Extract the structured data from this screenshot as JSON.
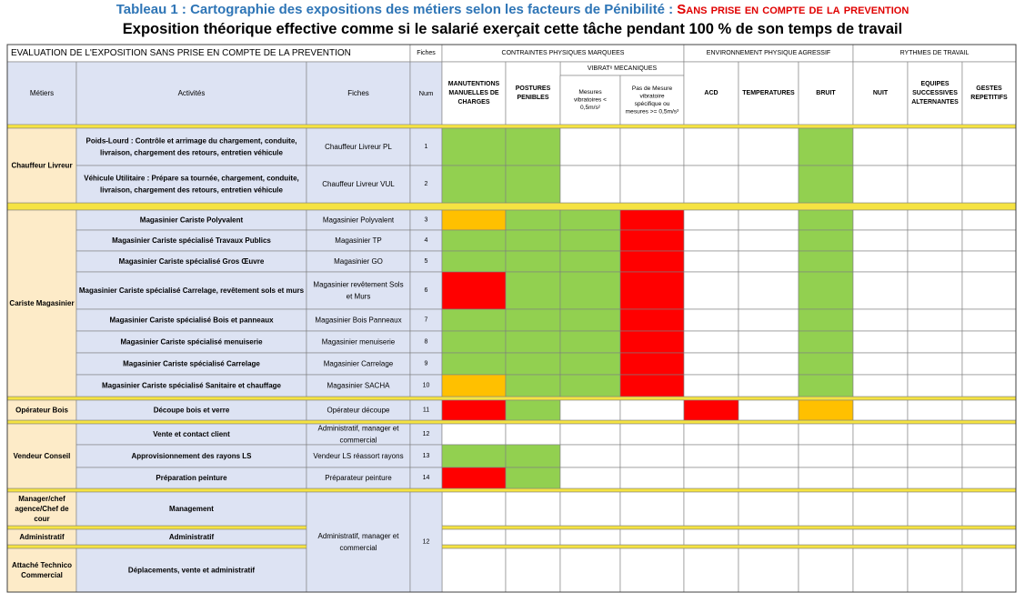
{
  "title": {
    "prefix": "Tableau 1 : Cartographie des expositions des métiers selon les facteurs de Pénibilité : ",
    "suffix": "Sans prise en compte de la prevention"
  },
  "subtitle": "Exposition théorique effective comme si le salarié exerçait cette tâche pendant 100 % de son temps de travail",
  "header": {
    "evaluation": "EVALUATION DE L'EXPOSITION SANS PRISE EN COMPTE DE LA PREVENTION",
    "fiches_top": "Fiches",
    "metiers": "Métiers",
    "activites": "Activités",
    "fiches": "Fiches",
    "num": "Num",
    "groups": [
      "CONTRAINTES PHYSIQUES MARQUEES",
      "ENVIRONNEMENT PHYSIQUE AGRESSIF",
      "RYTHMES DE TRAVAIL"
    ],
    "vibrations": "VIBRATᵉ MECANIQUES",
    "columns": [
      [
        "MANUTENTIONS",
        "MANUELLES DE",
        "CHARGES"
      ],
      [
        "POSTURES",
        "PENIBLES"
      ],
      [
        "Mesures",
        "vibratoires <",
        "0,5m/s²"
      ],
      [
        "Pas de Mesure",
        "vibratoire",
        "spécifique ou",
        "mesures >= 0,5m/s²"
      ],
      [
        "ACD"
      ],
      [
        "TEMPERATURES"
      ],
      [
        "BRUIT"
      ],
      [
        "NUIT"
      ],
      [
        "EQUIPES",
        "SUCCESSIVES",
        "ALTERNANTES"
      ],
      [
        "GESTES",
        "REPETITIFS"
      ]
    ]
  },
  "colors": {
    "green": "#92d050",
    "red": "#ff0000",
    "orange": "#ffc000",
    "row_fill": "#dde3f3",
    "metier_fill": "#fdebc8",
    "separator": "#f5e342"
  },
  "metiers": [
    {
      "label": [
        "Chauffeur Livreur"
      ]
    },
    {
      "label": [
        "Cariste Magasinier"
      ]
    },
    {
      "label": [
        "Opérateur Bois"
      ]
    },
    {
      "label": [
        "Vendeur Conseil"
      ]
    },
    {
      "label": [
        "Manager/chef",
        "agence/Chef de",
        "cour"
      ]
    },
    {
      "label": [
        "Administratif"
      ]
    },
    {
      "label": [
        "Attaché Technico",
        "Commercial"
      ]
    }
  ],
  "rows": [
    {
      "activite": [
        "Poids-Lourd : Contrôle et arrimage du chargement, conduite,",
        "livraison, chargement des retours, entretien véhicule"
      ],
      "fiche": [
        "Chauffeur Livreur PL"
      ],
      "num": "1",
      "cells": [
        "G",
        "G",
        "",
        "",
        "",
        "",
        "G",
        "",
        "",
        ""
      ]
    },
    {
      "activite": [
        "Véhicule Utilitaire : Prépare sa tournée, chargement, conduite,",
        "livraison, chargement des retours, entretien véhicule"
      ],
      "fiche": [
        "Chauffeur Livreur VUL"
      ],
      "num": "2",
      "cells": [
        "G",
        "G",
        "",
        "",
        "",
        "",
        "G",
        "",
        "",
        ""
      ]
    },
    {
      "activite": [
        "Magasinier Cariste Polyvalent"
      ],
      "fiche": [
        "Magasinier Polyvalent"
      ],
      "num": "3",
      "cells": [
        "O",
        "G",
        "G",
        "R",
        "",
        "",
        "G",
        "",
        "",
        ""
      ]
    },
    {
      "activite": [
        "Magasinier Cariste spécialisé Travaux Publics"
      ],
      "fiche": [
        "Magasinier TP"
      ],
      "num": "4",
      "cells": [
        "G",
        "G",
        "G",
        "R",
        "",
        "",
        "G",
        "",
        "",
        ""
      ]
    },
    {
      "activite": [
        "Magasinier Cariste spécialisé Gros Œuvre"
      ],
      "fiche": [
        "Magasinier GO"
      ],
      "num": "5",
      "cells": [
        "G",
        "G",
        "G",
        "R",
        "",
        "",
        "G",
        "",
        "",
        ""
      ]
    },
    {
      "activite": [
        "Magasinier Cariste spécialisé Carrelage, revêtement sols et murs"
      ],
      "fiche": [
        "Magasinier revêtement Sols",
        "et Murs"
      ],
      "num": "6",
      "cells": [
        "R",
        "G",
        "G",
        "R",
        "",
        "",
        "G",
        "",
        "",
        ""
      ]
    },
    {
      "activite": [
        "Magasinier Cariste spécialisé Bois et panneaux"
      ],
      "fiche": [
        "Magasinier Bois Panneaux"
      ],
      "num": "7",
      "cells": [
        "G",
        "G",
        "G",
        "R",
        "",
        "",
        "G",
        "",
        "",
        ""
      ]
    },
    {
      "activite": [
        "Magasinier Cariste spécialisé menuiserie"
      ],
      "fiche": [
        "Magasinier menuiserie"
      ],
      "num": "8",
      "cells": [
        "G",
        "G",
        "G",
        "R",
        "",
        "",
        "G",
        "",
        "",
        ""
      ]
    },
    {
      "activite": [
        "Magasinier Cariste spécialisé Carrelage"
      ],
      "fiche": [
        "Magasinier Carrelage"
      ],
      "num": "9",
      "cells": [
        "G",
        "G",
        "G",
        "R",
        "",
        "",
        "G",
        "",
        "",
        ""
      ]
    },
    {
      "activite": [
        "Magasinier Cariste spécialisé Sanitaire et chauffage"
      ],
      "fiche": [
        "Magasinier SACHA"
      ],
      "num": "10",
      "cells": [
        "O",
        "G",
        "G",
        "R",
        "",
        "",
        "G",
        "",
        "",
        ""
      ]
    },
    {
      "activite": [
        "Découpe bois et verre"
      ],
      "fiche": [
        "Opérateur découpe"
      ],
      "num": "11",
      "cells": [
        "R",
        "G",
        "",
        "",
        "R",
        "",
        "O",
        "",
        "",
        ""
      ]
    },
    {
      "activite": [
        "Vente et contact client"
      ],
      "fiche": [
        "Administratif, manager et",
        "commercial"
      ],
      "num": "12",
      "cells": [
        "",
        "",
        "",
        "",
        "",
        "",
        "",
        "",
        "",
        ""
      ]
    },
    {
      "activite": [
        "Approvisionnement des rayons LS"
      ],
      "fiche": [
        "Vendeur LS réassort rayons"
      ],
      "num": "13",
      "cells": [
        "G",
        "G",
        "",
        "",
        "",
        "",
        "",
        "",
        "",
        ""
      ]
    },
    {
      "activite": [
        "Préparation peinture"
      ],
      "fiche": [
        "Préparateur peinture"
      ],
      "num": "14",
      "cells": [
        "R",
        "G",
        "",
        "",
        "",
        "",
        "",
        "",
        "",
        ""
      ]
    },
    {
      "activite": [
        "Management"
      ],
      "fiche": [],
      "num": "",
      "cells": [
        "",
        "",
        "",
        "",
        "",
        "",
        "",
        "",
        "",
        ""
      ]
    },
    {
      "activite": [
        "Administratif"
      ],
      "fiche": [],
      "num": "",
      "cells": [
        "",
        "",
        "",
        "",
        "",
        "",
        "",
        "",
        "",
        ""
      ]
    },
    {
      "activite": [
        "Déplacements, vente et administratif"
      ],
      "fiche": [],
      "num": "",
      "cells": [
        "",
        "",
        "",
        "",
        "",
        "",
        "",
        "",
        "",
        ""
      ]
    }
  ],
  "merged_fiche": {
    "label": [
      "Administratif, manager et",
      "commercial"
    ],
    "num": "12"
  }
}
